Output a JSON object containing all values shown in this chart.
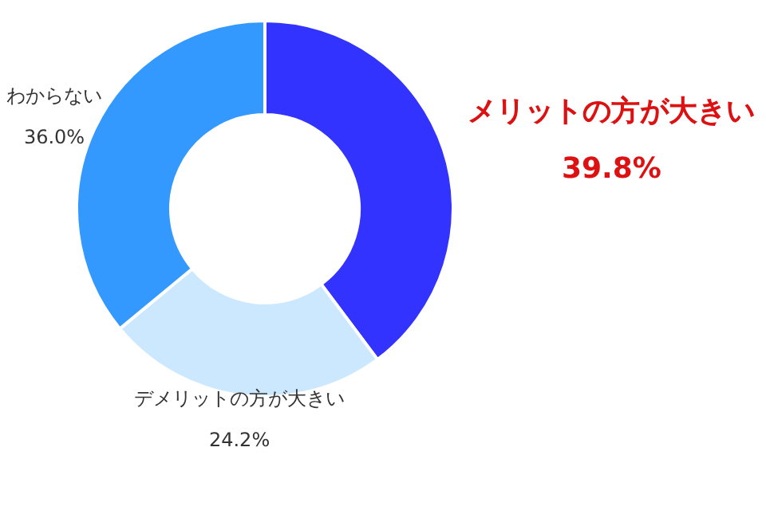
{
  "chart_data": {
    "type": "donut",
    "categories": [
      "メリットの方が大きい",
      "デメリットの方が大きい",
      "わからない"
    ],
    "values": [
      39.8,
      24.2,
      36.0
    ],
    "colors": [
      "#3333ff",
      "#cce8ff",
      "#3399ff"
    ],
    "value_labels": [
      "39.8%",
      "24.2%",
      "36.0%"
    ],
    "legend": false
  }
}
